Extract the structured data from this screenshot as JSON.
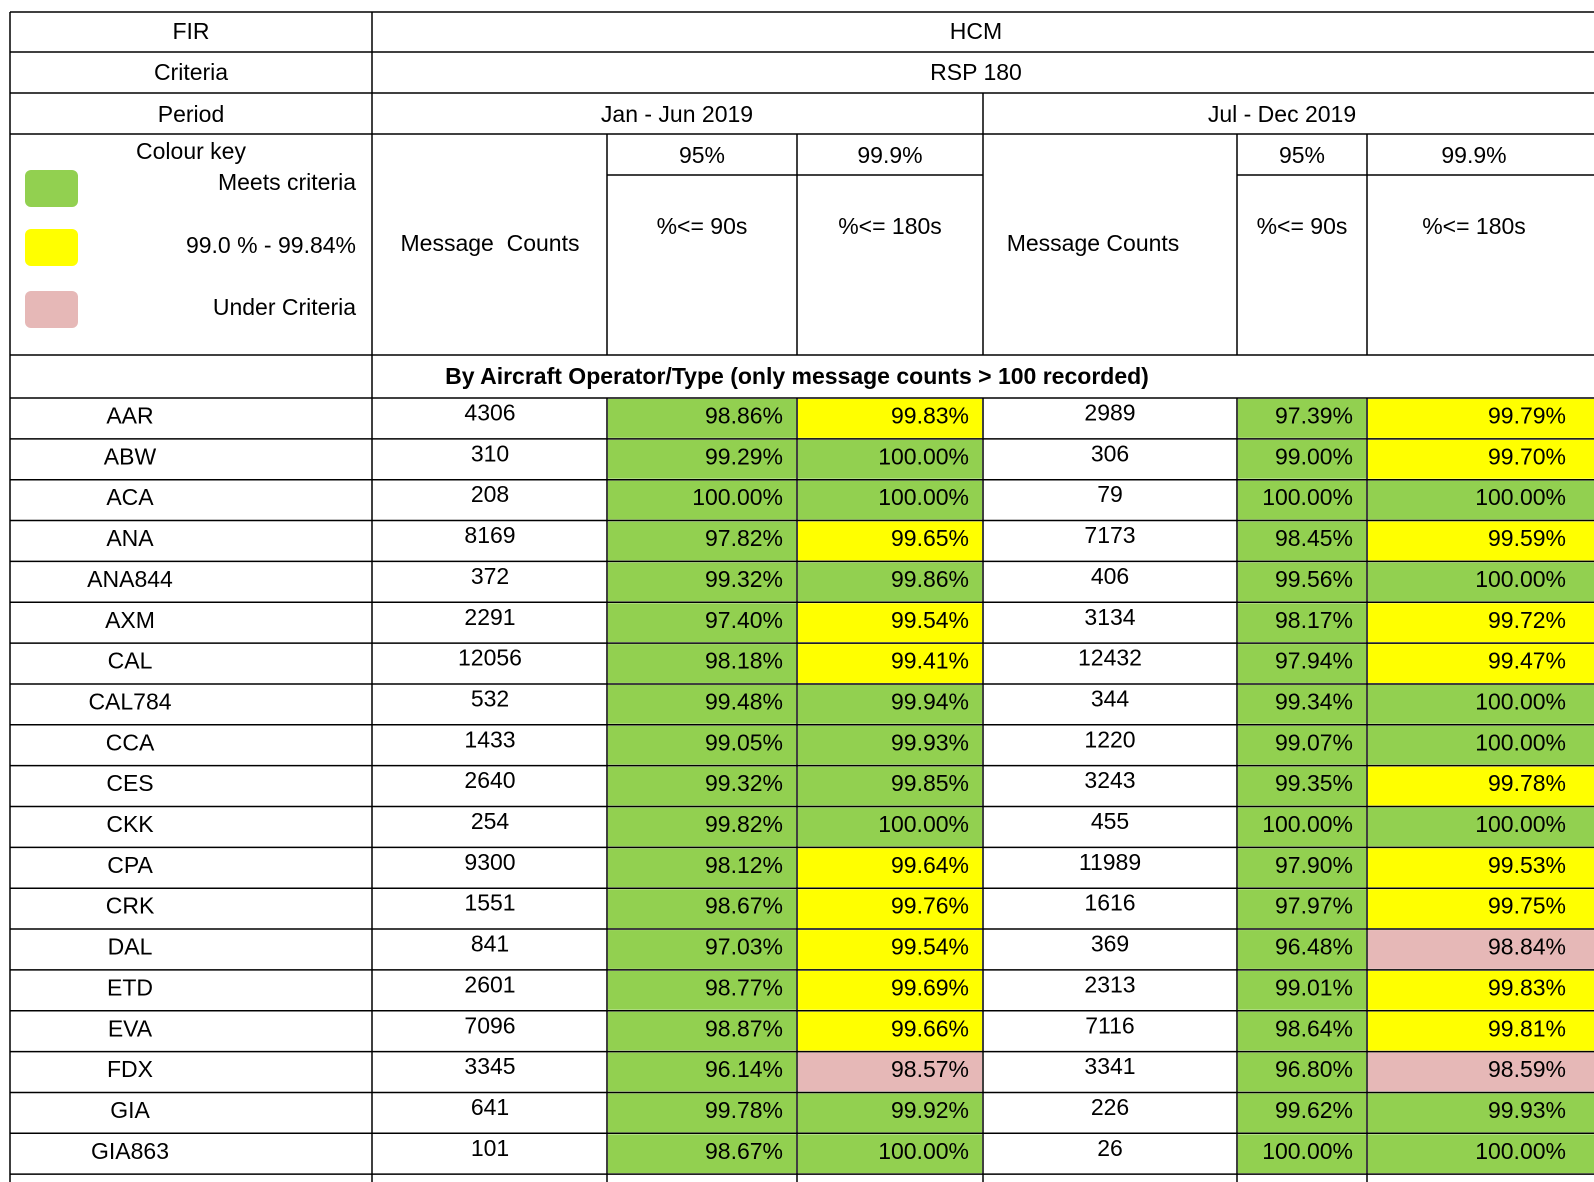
{
  "header": {
    "fir": [
      "FIR",
      "HCM"
    ],
    "criteria": [
      "Criteria",
      "RSP 180"
    ],
    "period": [
      "Period",
      "Jan - Jun 2019",
      "Jul - Dec 2019"
    ]
  },
  "colour_key": {
    "title": "Colour key",
    "items": [
      {
        "label": "Meets criteria",
        "color": "#92d050"
      },
      {
        "label": "99.0 % - 99.84%",
        "color": "#ffff00"
      },
      {
        "label": "Under Criteria",
        "color": "#e6b8b7"
      }
    ]
  },
  "column_headers": {
    "counts": [
      "Message  Counts",
      "Message Counts"
    ],
    "targets": [
      "95%",
      "99.9%",
      "95%",
      "99.9%"
    ],
    "limits": [
      "%<= 90s",
      "%<= 180s",
      "%<= 90s",
      "%<= 180s"
    ]
  },
  "section_title": "By Aircraft Operator/Type (only message counts > 100 recorded)",
  "rows": [
    {
      "cells": [
        "AAR",
        "4306",
        "98.86%",
        "99.83%",
        "2989",
        "97.39%",
        "99.79%"
      ],
      "colors": [
        null,
        null,
        "#92d050",
        "#ffff00",
        null,
        "#92d050",
        "#ffff00"
      ]
    },
    {
      "cells": [
        "ABW",
        "310",
        "99.29%",
        "100.00%",
        "306",
        "99.00%",
        "99.70%"
      ],
      "colors": [
        null,
        null,
        "#92d050",
        "#92d050",
        null,
        "#92d050",
        "#ffff00"
      ]
    },
    {
      "cells": [
        "ACA",
        "208",
        "100.00%",
        "100.00%",
        "79",
        "100.00%",
        "100.00%"
      ],
      "colors": [
        null,
        null,
        "#92d050",
        "#92d050",
        null,
        "#92d050",
        "#92d050"
      ]
    },
    {
      "cells": [
        "ANA",
        "8169",
        "97.82%",
        "99.65%",
        "7173",
        "98.45%",
        "99.59%"
      ],
      "colors": [
        null,
        null,
        "#92d050",
        "#ffff00",
        null,
        "#92d050",
        "#ffff00"
      ]
    },
    {
      "cells": [
        "ANA844",
        "372",
        "99.32%",
        "99.86%",
        "406",
        "99.56%",
        "100.00%"
      ],
      "colors": [
        null,
        null,
        "#92d050",
        "#92d050",
        null,
        "#92d050",
        "#92d050"
      ]
    },
    {
      "cells": [
        "AXM",
        "2291",
        "97.40%",
        "99.54%",
        "3134",
        "98.17%",
        "99.72%"
      ],
      "colors": [
        null,
        null,
        "#92d050",
        "#ffff00",
        null,
        "#92d050",
        "#ffff00"
      ]
    },
    {
      "cells": [
        "CAL",
        "12056",
        "98.18%",
        "99.41%",
        "12432",
        "97.94%",
        "99.47%"
      ],
      "colors": [
        null,
        null,
        "#92d050",
        "#ffff00",
        null,
        "#92d050",
        "#ffff00"
      ]
    },
    {
      "cells": [
        "CAL784",
        "532",
        "99.48%",
        "99.94%",
        "344",
        "99.34%",
        "100.00%"
      ],
      "colors": [
        null,
        null,
        "#92d050",
        "#92d050",
        null,
        "#92d050",
        "#92d050"
      ]
    },
    {
      "cells": [
        "CCA",
        "1433",
        "99.05%",
        "99.93%",
        "1220",
        "99.07%",
        "100.00%"
      ],
      "colors": [
        null,
        null,
        "#92d050",
        "#92d050",
        null,
        "#92d050",
        "#92d050"
      ]
    },
    {
      "cells": [
        "CES",
        "2640",
        "99.32%",
        "99.85%",
        "3243",
        "99.35%",
        "99.78%"
      ],
      "colors": [
        null,
        null,
        "#92d050",
        "#92d050",
        null,
        "#92d050",
        "#ffff00"
      ]
    },
    {
      "cells": [
        "CKK",
        "254",
        "99.82%",
        "100.00%",
        "455",
        "100.00%",
        "100.00%"
      ],
      "colors": [
        null,
        null,
        "#92d050",
        "#92d050",
        null,
        "#92d050",
        "#92d050"
      ]
    },
    {
      "cells": [
        "CPA",
        "9300",
        "98.12%",
        "99.64%",
        "11989",
        "97.90%",
        "99.53%"
      ],
      "colors": [
        null,
        null,
        "#92d050",
        "#ffff00",
        null,
        "#92d050",
        "#ffff00"
      ]
    },
    {
      "cells": [
        "CRK",
        "1551",
        "98.67%",
        "99.76%",
        "1616",
        "97.97%",
        "99.75%"
      ],
      "colors": [
        null,
        null,
        "#92d050",
        "#ffff00",
        null,
        "#92d050",
        "#ffff00"
      ]
    },
    {
      "cells": [
        "DAL",
        "841",
        "97.03%",
        "99.54%",
        "369",
        "96.48%",
        "98.84%"
      ],
      "colors": [
        null,
        null,
        "#92d050",
        "#ffff00",
        null,
        "#92d050",
        "#e6b8b7"
      ]
    },
    {
      "cells": [
        "ETD",
        "2601",
        "98.77%",
        "99.69%",
        "2313",
        "99.01%",
        "99.83%"
      ],
      "colors": [
        null,
        null,
        "#92d050",
        "#ffff00",
        null,
        "#92d050",
        "#ffff00"
      ]
    },
    {
      "cells": [
        "EVA",
        "7096",
        "98.87%",
        "99.66%",
        "7116",
        "98.64%",
        "99.81%"
      ],
      "colors": [
        null,
        null,
        "#92d050",
        "#ffff00",
        null,
        "#92d050",
        "#ffff00"
      ]
    },
    {
      "cells": [
        "FDX",
        "3345",
        "96.14%",
        "98.57%",
        "3341",
        "96.80%",
        "98.59%"
      ],
      "colors": [
        null,
        null,
        "#92d050",
        "#e6b8b7",
        null,
        "#92d050",
        "#e6b8b7"
      ]
    },
    {
      "cells": [
        "GIA",
        "641",
        "99.78%",
        "99.92%",
        "226",
        "99.62%",
        "99.93%"
      ],
      "colors": [
        null,
        null,
        "#92d050",
        "#92d050",
        null,
        "#92d050",
        "#92d050"
      ]
    },
    {
      "cells": [
        "GIA863",
        "101",
        "98.67%",
        "100.00%",
        "26",
        "100.00%",
        "100.00%"
      ],
      "colors": [
        null,
        null,
        "#92d050",
        "#92d050",
        null,
        "#92d050",
        "#92d050"
      ]
    }
  ]
}
